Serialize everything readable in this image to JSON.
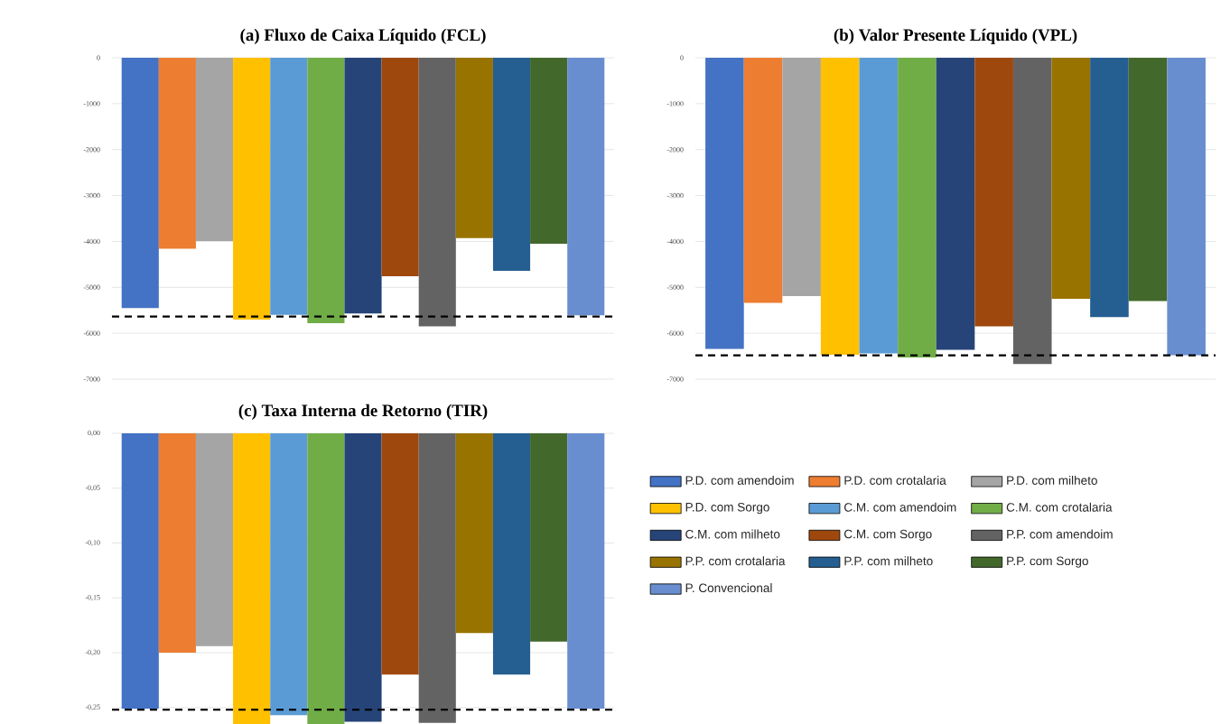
{
  "chart_data": [
    {
      "type": "bar",
      "title": "(a)  Fluxo de Caixa Líquido (FCL)",
      "categories": [
        null
      ],
      "ylim": [
        -7000,
        0
      ],
      "yticks": [
        0,
        -1000,
        -2000,
        -3000,
        -4000,
        -5000,
        -6000,
        -7000
      ],
      "grid": "y",
      "ref_lines": [
        {
          "axis": "y",
          "value": -5635,
          "color": "#000000",
          "line_style": "dashed"
        }
      ],
      "series": [
        {
          "color": "#4472c4",
          "values": [
            -5450
          ]
        },
        {
          "color": "#ed7d31",
          "values": [
            -4160
          ]
        },
        {
          "color": "#a5a5a5",
          "values": [
            -3990
          ]
        },
        {
          "color": "#ffc000",
          "values": [
            -5700
          ]
        },
        {
          "color": "#5b9bd5",
          "values": [
            -5600
          ]
        },
        {
          "color": "#70ad47",
          "values": [
            -5780
          ]
        },
        {
          "color": "#264478",
          "values": [
            -5570
          ]
        },
        {
          "color": "#9e480e",
          "values": [
            -4760
          ]
        },
        {
          "color": "#636363",
          "values": [
            -5850
          ]
        },
        {
          "color": "#997300",
          "values": [
            -3930
          ]
        },
        {
          "color": "#255e91",
          "values": [
            -4640
          ]
        },
        {
          "color": "#43682b",
          "values": [
            -4050
          ]
        },
        {
          "color": "#698ed0",
          "values": [
            -5610
          ]
        }
      ]
    },
    {
      "type": "bar",
      "title": "(b)  Valor Presente Líquido (VPL)",
      "categories": [
        null
      ],
      "ylim": [
        -7000,
        0
      ],
      "yticks": [
        0,
        -1000,
        -2000,
        -3000,
        -4000,
        -5000,
        -6000,
        -7000
      ],
      "grid": "y",
      "ref_lines": [
        {
          "axis": "y",
          "value": -6480,
          "color": "#000000",
          "line_style": "dashed"
        }
      ],
      "series": [
        {
          "color": "#4472c4",
          "values": [
            -6340
          ]
        },
        {
          "color": "#ed7d31",
          "values": [
            -5340
          ]
        },
        {
          "color": "#a5a5a5",
          "values": [
            -5190
          ]
        },
        {
          "color": "#ffc000",
          "values": [
            -6470
          ]
        },
        {
          "color": "#5b9bd5",
          "values": [
            -6440
          ]
        },
        {
          "color": "#70ad47",
          "values": [
            -6530
          ]
        },
        {
          "color": "#264478",
          "values": [
            -6360
          ]
        },
        {
          "color": "#9e480e",
          "values": [
            -5850
          ]
        },
        {
          "color": "#636363",
          "values": [
            -6670
          ]
        },
        {
          "color": "#997300",
          "values": [
            -5250
          ]
        },
        {
          "color": "#255e91",
          "values": [
            -5650
          ]
        },
        {
          "color": "#43682b",
          "values": [
            -5300
          ]
        },
        {
          "color": "#698ed0",
          "values": [
            -6480
          ]
        }
      ]
    },
    {
      "type": "bar",
      "title": "(c)  Taxa Interna de Retorno (TIR)",
      "categories": [
        null
      ],
      "ylim": [
        -0.265,
        0
      ],
      "yticks": [
        {
          "value": 0,
          "label": "0,00"
        },
        {
          "value": -0.05,
          "label": "-0,05"
        },
        {
          "value": -0.1,
          "label": "-0,10"
        },
        {
          "value": -0.15,
          "label": "-0,15"
        },
        {
          "value": -0.2,
          "label": "-0,20"
        },
        {
          "value": -0.25,
          "label": "-0,25"
        }
      ],
      "grid": "y",
      "legend": "right",
      "ref_lines": [
        {
          "axis": "y",
          "value": -0.252,
          "color": "#000000",
          "line_style": "dashed"
        }
      ],
      "series": [
        {
          "name": "P.D. com amendoim",
          "color": "#4472c4",
          "values": [
            -0.251
          ]
        },
        {
          "name": "P.D. com crotalaria",
          "color": "#ed7d31",
          "values": [
            -0.2
          ]
        },
        {
          "name": "P.D. com milheto",
          "color": "#a5a5a5",
          "values": [
            -0.194
          ]
        },
        {
          "name": "P.D. com Sorgo",
          "color": "#ffc000",
          "values": [
            -0.265
          ]
        },
        {
          "name": "C.M. com amendoim",
          "color": "#5b9bd5",
          "values": [
            -0.257
          ]
        },
        {
          "name": "C.M. com crotalaria",
          "color": "#70ad47",
          "values": [
            -0.265
          ]
        },
        {
          "name": "C.M. com milheto",
          "color": "#264478",
          "values": [
            -0.263
          ]
        },
        {
          "name": "C.M. com Sorgo",
          "color": "#9e480e",
          "values": [
            -0.22
          ]
        },
        {
          "name": "P.P. com amendoim",
          "color": "#636363",
          "values": [
            -0.264
          ]
        },
        {
          "name": "P.P. com crotalaria",
          "color": "#997300",
          "values": [
            -0.182
          ]
        },
        {
          "name": "P.P. com milheto",
          "color": "#255e91",
          "values": [
            -0.22
          ]
        },
        {
          "name": "P.P. com Sorgo",
          "color": "#43682b",
          "values": [
            -0.19
          ]
        },
        {
          "name": "P. Convencional",
          "color": "#698ed0",
          "values": [
            -0.251
          ]
        }
      ]
    }
  ]
}
